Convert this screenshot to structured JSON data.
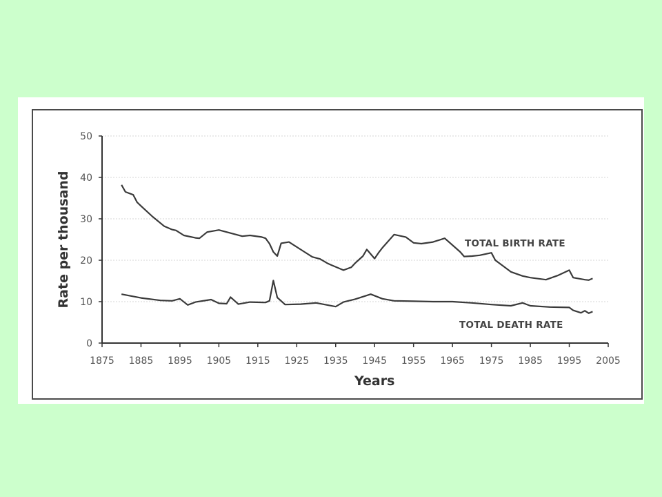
{
  "colors": {
    "background": "#ccffcc",
    "panel": "#ffffff",
    "line": "#3a3a3a",
    "grid": "#d6d6d6"
  },
  "chart_data": {
    "type": "line",
    "title": "",
    "xlabel": "Years",
    "ylabel": "Rate per thousand",
    "xlim": [
      1875,
      2005
    ],
    "ylim": [
      0,
      50
    ],
    "x_ticks": [
      "1875",
      "1885",
      "1895",
      "1905",
      "1915",
      "1925",
      "1935",
      "1945",
      "1955",
      "1965",
      "1975",
      "1985",
      "1995",
      "2005"
    ],
    "y_ticks": [
      "0",
      "10",
      "20",
      "30",
      "40",
      "50"
    ],
    "grid": "horizontal dotted",
    "legend": "none (series labeled inline)",
    "series": [
      {
        "name": "TOTAL BIRTH RATE",
        "x": [
          1880,
          1881,
          1883,
          1884,
          1885,
          1888,
          1891,
          1893,
          1894,
          1896,
          1899,
          1900,
          1902,
          1905,
          1907,
          1911,
          1913,
          1916,
          1917,
          1918,
          1919,
          1920,
          1921,
          1923,
          1927,
          1929,
          1931,
          1933,
          1934,
          1935,
          1937,
          1939,
          1940,
          1942,
          1943,
          1945,
          1946,
          1947,
          1950,
          1953,
          1955,
          1957,
          1960,
          1963,
          1967,
          1968,
          1970,
          1972,
          1975,
          1976,
          1978,
          1980,
          1983,
          1985,
          1989,
          1992,
          1995,
          1996,
          1999,
          2000,
          2001
        ],
        "values": [
          38.2,
          36.5,
          35.8,
          34.0,
          33.1,
          30.5,
          28.2,
          27.4,
          27.2,
          26.0,
          25.4,
          25.3,
          26.8,
          27.3,
          26.8,
          25.8,
          26.0,
          25.6,
          25.3,
          24.0,
          22.0,
          21.0,
          24.1,
          24.4,
          22.0,
          20.8,
          20.3,
          19.2,
          18.8,
          18.4,
          17.6,
          18.3,
          19.3,
          21.0,
          22.6,
          20.4,
          21.8,
          23.0,
          26.2,
          25.6,
          24.2,
          24.0,
          24.4,
          25.3,
          22.0,
          20.9,
          21.0,
          21.2,
          21.8,
          20.0,
          18.6,
          17.2,
          16.2,
          15.8,
          15.3,
          16.3,
          17.6,
          15.8,
          15.3,
          15.2,
          15.6
        ]
      },
      {
        "name": "TOTAL DEATH RATE",
        "x": [
          1880,
          1885,
          1890,
          1893,
          1895,
          1897,
          1899,
          1903,
          1905,
          1907,
          1908,
          1910,
          1913,
          1917,
          1918,
          1919,
          1920,
          1922,
          1926,
          1930,
          1935,
          1937,
          1940,
          1944,
          1947,
          1950,
          1955,
          1960,
          1965,
          1970,
          1975,
          1980,
          1983,
          1985,
          1990,
          1995,
          1996,
          1998,
          1999,
          2000,
          2001
        ],
        "values": [
          11.8,
          10.9,
          10.3,
          10.2,
          10.7,
          9.2,
          9.9,
          10.5,
          9.6,
          9.5,
          11.1,
          9.4,
          9.9,
          9.8,
          10.2,
          15.1,
          11.0,
          9.3,
          9.4,
          9.7,
          8.8,
          9.9,
          10.6,
          11.8,
          10.7,
          10.2,
          10.1,
          10.0,
          10.0,
          9.7,
          9.3,
          9.0,
          9.7,
          9.0,
          8.7,
          8.6,
          7.9,
          7.3,
          7.8,
          7.2,
          7.6
        ]
      }
    ]
  }
}
